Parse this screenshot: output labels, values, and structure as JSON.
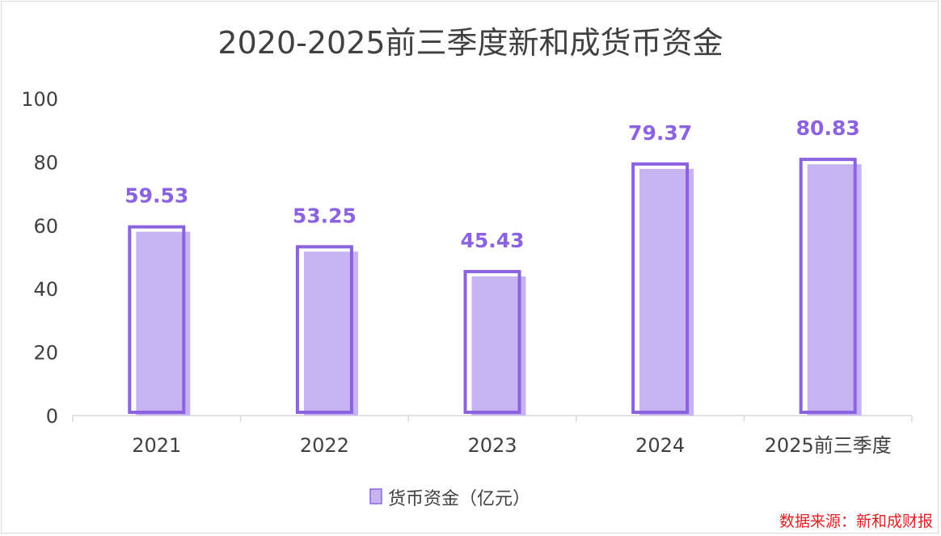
{
  "chart_data": {
    "type": "bar",
    "title": "2020-2025前三季度新和成货币资金",
    "categories": [
      "2021",
      "2022",
      "2023",
      "2024",
      "2025前三季度"
    ],
    "series": [
      {
        "name": "货币资金（亿元）",
        "values": [
          59.53,
          53.25,
          45.43,
          79.37,
          80.83
        ],
        "labels": [
          "59.53",
          "53.25",
          "45.43",
          "79.37",
          "80.83"
        ]
      }
    ],
    "yticks": [
      "0",
      "20",
      "40",
      "60",
      "80",
      "100"
    ],
    "ylim": [
      0,
      100
    ],
    "grid": false,
    "legend_position": "bottom"
  },
  "source_note": "数据来源：新和成财报",
  "colors": {
    "bar_fill": "#c5b3f2",
    "bar_outline": "#8b63e0",
    "label": "#8b63e0",
    "axis": "#d9d9d9"
  }
}
